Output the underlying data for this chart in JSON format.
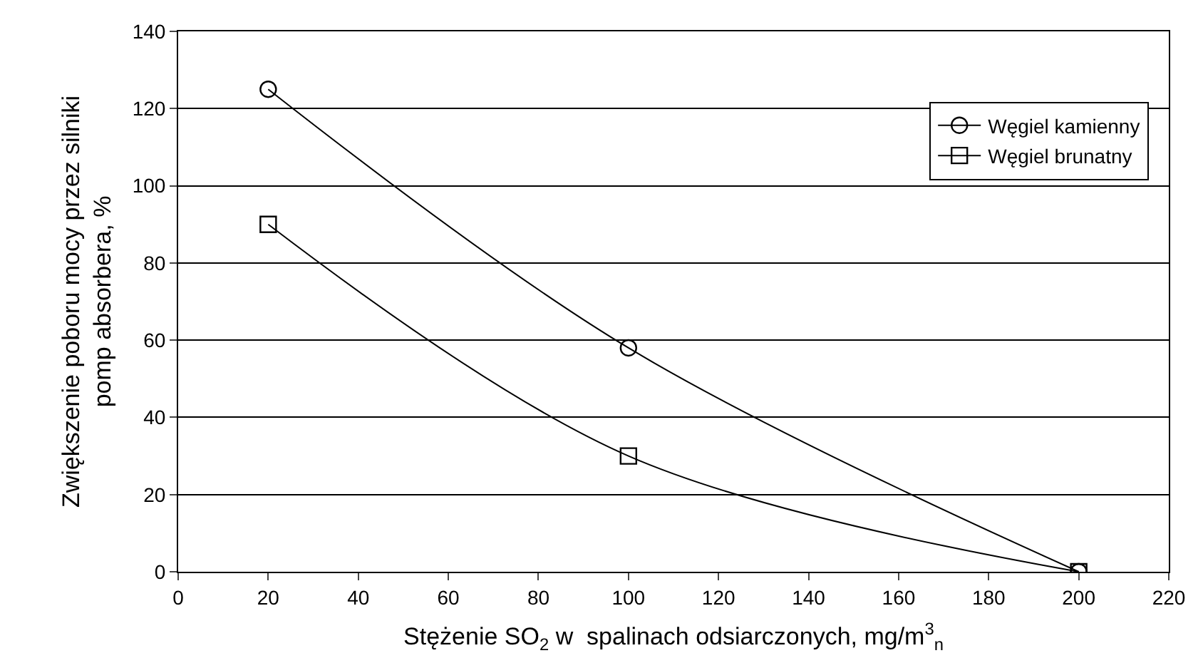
{
  "chart_data": {
    "type": "line",
    "xlabel": "Stężenie SO$_{2}$ w  spalinach odsiarczonych, mg/m$^{3}$$_{n}$",
    "ylabel": "Zwiększenie poboru mocy przez silniki\npomp absorbera, %",
    "x": [
      20,
      100,
      200
    ],
    "series": [
      {
        "name": "Węgiel kamienny",
        "color": "#000000",
        "marker": "circle",
        "values": [
          125,
          58,
          0
        ]
      },
      {
        "name": "Węgiel brunatny",
        "color": "#000000",
        "marker": "square",
        "values": [
          90,
          30,
          0
        ]
      }
    ],
    "xlim": [
      0,
      220
    ],
    "xticks": [
      0,
      20,
      40,
      60,
      80,
      100,
      120,
      140,
      160,
      180,
      200,
      220
    ],
    "ylim": [
      0,
      140
    ],
    "yticks": [
      0,
      20,
      40,
      60,
      80,
      100,
      120,
      140
    ],
    "grid": "y",
    "legend": "top right",
    "line_style": "solid"
  }
}
